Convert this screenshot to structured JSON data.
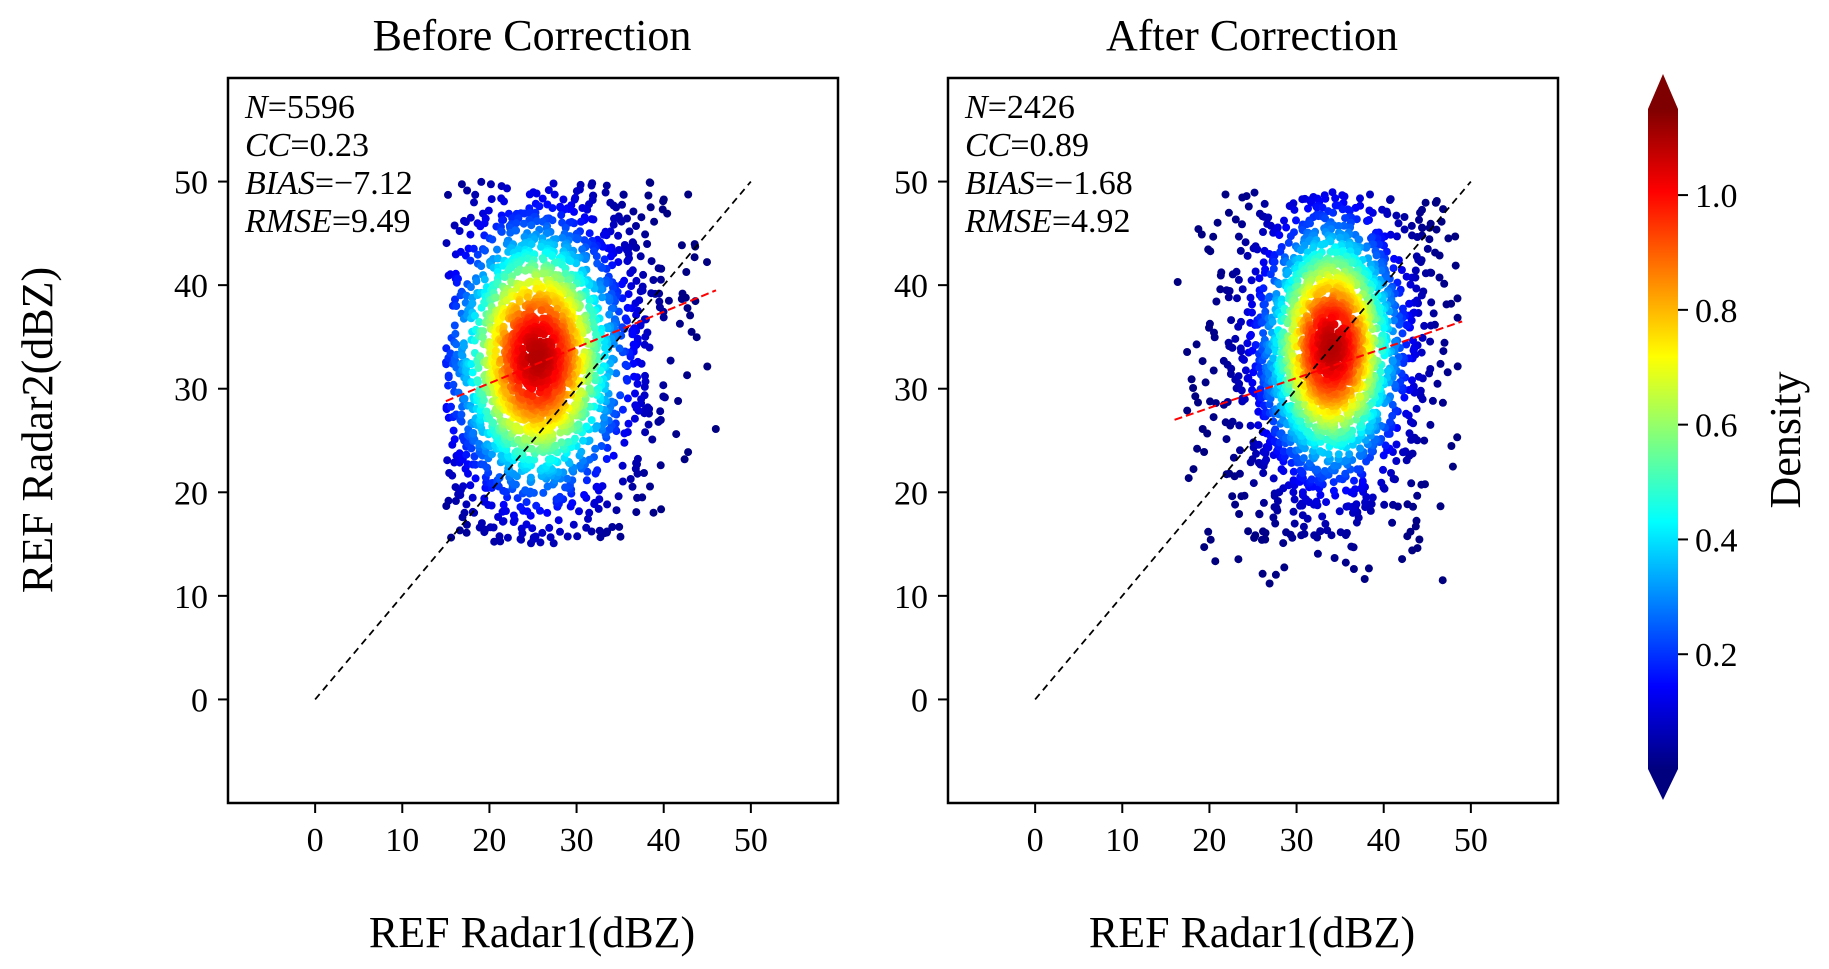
{
  "ylabel_shared": "REF Radar2(dBZ)",
  "colorbar": {
    "label": "Density",
    "ticks": [
      "0.2",
      "0.4",
      "0.6",
      "0.8",
      "1.0"
    ],
    "tick_values": [
      0.2,
      0.4,
      0.6,
      0.8,
      1.0
    ],
    "vmin": 0.0,
    "vmax": 1.15,
    "colormap": "jet",
    "extend": "both",
    "colors": [
      "#00007f",
      "#0000ff",
      "#007fff",
      "#00ffff",
      "#7fff7f",
      "#ffff00",
      "#ff7f00",
      "#ff0000",
      "#7f0000"
    ]
  },
  "chart_data": [
    {
      "type": "scatter",
      "title": "Before Correction",
      "xlabel": "REF Radar1(dBZ)",
      "xlim": [
        -10,
        60
      ],
      "ylim": [
        -10,
        60
      ],
      "xticks": [
        "0",
        "10",
        "20",
        "30",
        "40",
        "50"
      ],
      "yticks": [
        "0",
        "10",
        "20",
        "30",
        "40",
        "50"
      ],
      "stats": [
        {
          "var": "N",
          "op": "=",
          "value": "5596"
        },
        {
          "var": "CC",
          "op": "=",
          "value": "0.23"
        },
        {
          "var": "BIAS",
          "op": "=",
          "value": "−7.12"
        },
        {
          "var": "RMSE",
          "op": "=",
          "value": "9.49"
        }
      ],
      "one_to_one": {
        "from": [
          0,
          0
        ],
        "to": [
          50,
          50
        ],
        "color": "#000000",
        "style": "dashed"
      },
      "fit_line": {
        "from": [
          15,
          28.8
        ],
        "to": [
          46,
          39.5
        ],
        "color": "#ff0000",
        "style": "dashed"
      },
      "density_core": {
        "center": [
          25.5,
          33
        ],
        "sx": 5.5,
        "sy": 7.5,
        "rho": 0.2
      },
      "extent": {
        "xmin": 15,
        "xmax": 46,
        "ymin": 15,
        "ymax": 50
      },
      "points_approx": 5596
    },
    {
      "type": "scatter",
      "title": "After Correction",
      "xlabel": "REF Radar1(dBZ)",
      "xlim": [
        -10,
        60
      ],
      "ylim": [
        -10,
        60
      ],
      "xticks": [
        "0",
        "10",
        "20",
        "30",
        "40",
        "50"
      ],
      "yticks": [
        "0",
        "10",
        "20",
        "30",
        "40",
        "50"
      ],
      "stats": [
        {
          "var": "N",
          "op": "=",
          "value": "2426"
        },
        {
          "var": "CC",
          "op": "=",
          "value": "0.89"
        },
        {
          "var": "BIAS",
          "op": "=",
          "value": "−1.68"
        },
        {
          "var": "RMSE",
          "op": "=",
          "value": "4.92"
        }
      ],
      "one_to_one": {
        "from": [
          0,
          0
        ],
        "to": [
          50,
          50
        ],
        "color": "#000000",
        "style": "dashed"
      },
      "fit_line": {
        "from": [
          16,
          27
        ],
        "to": [
          49,
          36.5
        ],
        "color": "#ff0000",
        "style": "dashed"
      },
      "density_core": {
        "center": [
          34,
          34
        ],
        "sx": 4.5,
        "sy": 7,
        "rho": 0.15
      },
      "extent": {
        "xmin": 16,
        "xmax": 49,
        "ymin": 11,
        "ymax": 49
      },
      "points_approx": 2426
    }
  ]
}
